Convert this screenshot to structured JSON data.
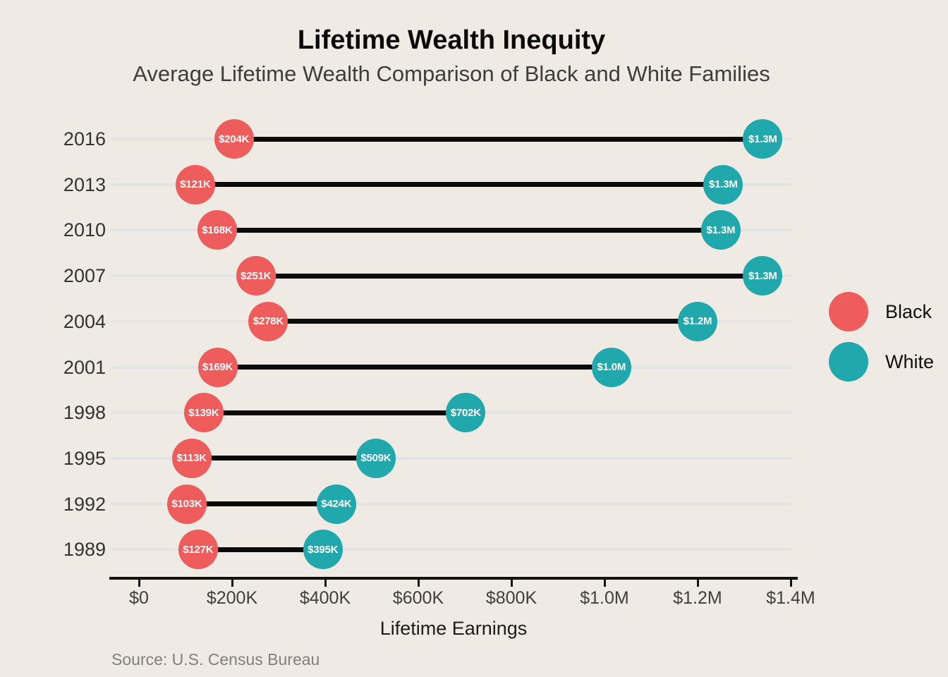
{
  "title": "Lifetime Wealth Inequity",
  "subtitle": "Average Lifetime Wealth Comparison of Black and White Families",
  "source": "Source: U.S. Census Bureau",
  "colors": {
    "black_series": "#ee5c5b",
    "white_series": "#21a8ac",
    "background": "#efeae3",
    "connector": "#0b0b0b",
    "gridline": "#e4e4e8",
    "axis": "#111111"
  },
  "legend": [
    {
      "label": "Black",
      "color_key": "black_series"
    },
    {
      "label": "White",
      "color_key": "white_series"
    }
  ],
  "chart_data": {
    "type": "dumbbell",
    "title": "Lifetime Wealth Inequity",
    "subtitle": "Average Lifetime Wealth Comparison of Black and White Families",
    "xlabel": "Lifetime Earnings",
    "ylabel": "",
    "categories": [
      "2016",
      "2013",
      "2010",
      "2007",
      "2004",
      "2001",
      "1998",
      "1995",
      "1992",
      "1989"
    ],
    "series": [
      {
        "name": "Black",
        "values": [
          204000,
          121000,
          168000,
          251000,
          278000,
          169000,
          139000,
          113000,
          103000,
          127000
        ],
        "labels": [
          "$204K",
          "$121K",
          "$168K",
          "$251K",
          "$278K",
          "$169K",
          "$139K",
          "$113K",
          "$103K",
          "$127K"
        ]
      },
      {
        "name": "White",
        "values": [
          1340000,
          1255000,
          1250000,
          1340000,
          1200000,
          1015000,
          702000,
          509000,
          424000,
          395000
        ],
        "labels": [
          "$1.3M",
          "$1.3M",
          "$1.3M",
          "$1.3M",
          "$1.2M",
          "$1.0M",
          "$702K",
          "$509K",
          "$424K",
          "$395K"
        ]
      }
    ],
    "x_ticks": [
      {
        "value": 0,
        "label": "$0"
      },
      {
        "value": 200000,
        "label": "$200K"
      },
      {
        "value": 400000,
        "label": "$400K"
      },
      {
        "value": 600000,
        "label": "$600K"
      },
      {
        "value": 800000,
        "label": "$800K"
      },
      {
        "value": 1000000,
        "label": "$1.0M"
      },
      {
        "value": 1200000,
        "label": "$1.2M"
      },
      {
        "value": 1400000,
        "label": "$1.4M"
      }
    ],
    "xlim": [
      0,
      1400000
    ],
    "grid": "horizontal-row-guides",
    "legend_position": "right"
  }
}
